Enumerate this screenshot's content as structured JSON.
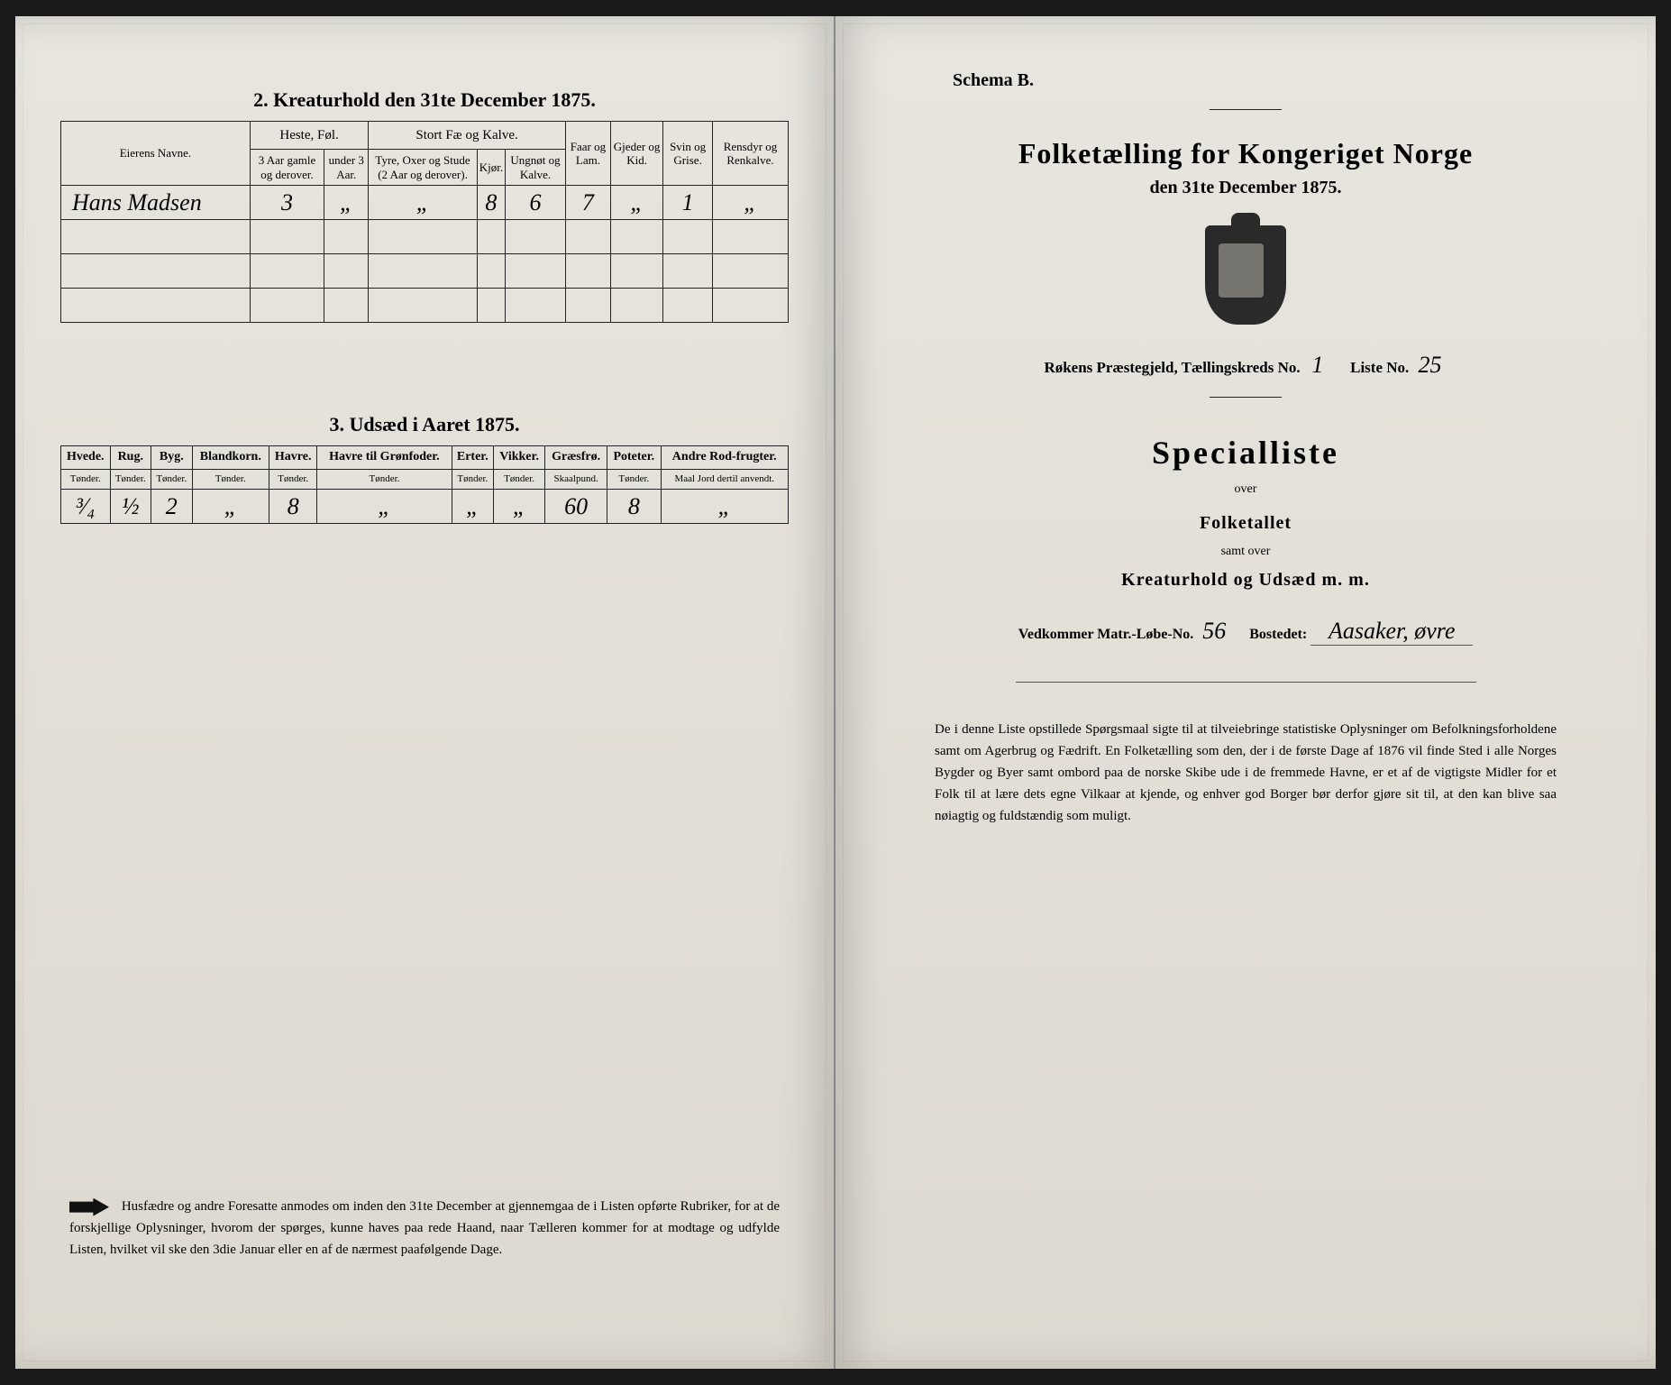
{
  "left_page": {
    "section2_title": "2.  Kreaturhold den 31te December 1875.",
    "table2": {
      "col_names_label": "Eierens Navne.",
      "groups": {
        "heste": "Heste, Føl.",
        "stort": "Stort Fæ og Kalve.",
        "faar": "Faar og Lam.",
        "gjeder": "Gjeder og Kid.",
        "svin": "Svin og Grise.",
        "rens": "Rensdyr og Renkalve."
      },
      "sub": {
        "heste1": "3 Aar gamle og derover.",
        "heste2": "under 3 Aar.",
        "stort1": "Tyre, Oxer og Stude (2 Aar og derover).",
        "stort2": "Kjør.",
        "stort3": "Ungnøt og Kalve."
      },
      "rows": [
        {
          "name": "Hans Madsen",
          "v": [
            "3",
            "„",
            "„",
            "8",
            "6",
            "7",
            "„",
            "1",
            "„"
          ]
        },
        {
          "name": "",
          "v": [
            "",
            "",
            "",
            "",
            "",
            "",
            "",
            "",
            ""
          ]
        },
        {
          "name": "",
          "v": [
            "",
            "",
            "",
            "",
            "",
            "",
            "",
            "",
            ""
          ]
        },
        {
          "name": "",
          "v": [
            "",
            "",
            "",
            "",
            "",
            "",
            "",
            "",
            ""
          ]
        }
      ]
    },
    "section3_title": "3.  Udsæd i Aaret 1875.",
    "table3": {
      "cols": [
        {
          "h": "Hvede.",
          "u": "Tønder."
        },
        {
          "h": "Rug.",
          "u": "Tønder."
        },
        {
          "h": "Byg.",
          "u": "Tønder."
        },
        {
          "h": "Blandkorn.",
          "u": "Tønder."
        },
        {
          "h": "Havre.",
          "u": "Tønder."
        },
        {
          "h": "Havre til Grønfoder.",
          "u": "Tønder."
        },
        {
          "h": "Erter.",
          "u": "Tønder."
        },
        {
          "h": "Vikker.",
          "u": "Tønder."
        },
        {
          "h": "Græsfrø.",
          "u": "Skaalpund."
        },
        {
          "h": "Poteter.",
          "u": "Tønder."
        },
        {
          "h": "Andre Rod-frugter.",
          "u": "Maal Jord dertil anvendt."
        }
      ],
      "vals": [
        "³⁄₄",
        "½",
        "2",
        "„",
        "8",
        "„",
        "„",
        "„",
        "60",
        "8",
        "„"
      ]
    },
    "footer": "Husfædre og andre Foresatte anmodes om inden den 31te December at gjennemgaa de i Listen opførte Rubriker, for at de forskjellige Oplysninger, hvorom der spørges, kunne haves paa rede Haand, naar Tælleren kommer for at modtage og udfylde Listen, hvilket vil ske den 3die Januar eller en af de nærmest paafølgende Dage."
  },
  "right_page": {
    "schema": "Schema B.",
    "title": "Folketælling for Kongeriget Norge",
    "subtitle": "den 31te December 1875.",
    "parish_prefix": "Røkens Præstegjeld,  Tællingskreds No.",
    "kreds_no": "1",
    "liste_label": "Liste No.",
    "liste_no": "25",
    "specialliste": "Specialliste",
    "over": "over",
    "folketallet": "Folketallet",
    "samt_over": "samt over",
    "kreatur": "Kreaturhold og Udsæd m. m.",
    "matr_label": "Vedkommer Matr.-Løbe-No.",
    "matr_no": "56",
    "bosted_label": "Bostedet:",
    "bosted": "Aasaker, øvre",
    "paragraph": "De i denne Liste opstillede Spørgsmaal sigte til at tilveiebringe statistiske Oplysninger om Befolkningsforholdene samt om Agerbrug og Fædrift.  En Folketælling som den, der i de første Dage af 1876 vil finde Sted i alle Norges Bygder og Byer samt ombord paa de norske Skibe ude i de fremmede Havne, er et af de vigtigste Midler for et Folk til at lære dets egne Vilkaar at kjende, og enhver god Borger bør derfor gjøre sit til, at den kan blive saa nøiagtig og fuldstændig som muligt."
  }
}
